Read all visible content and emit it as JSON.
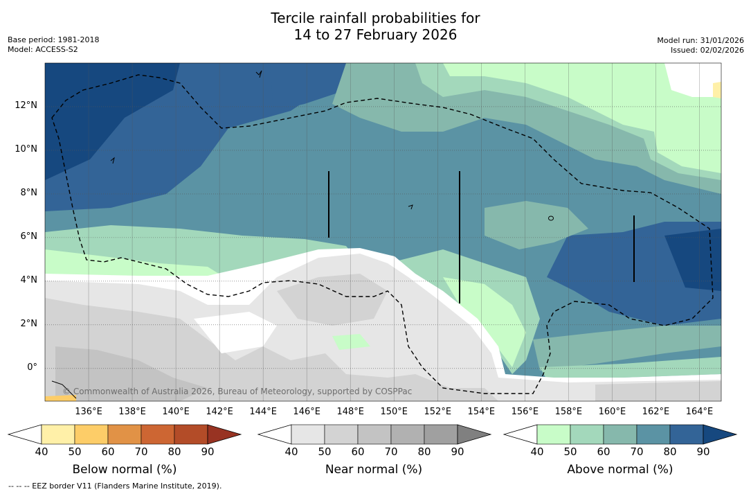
{
  "title": {
    "line1": "Tercile rainfall probabilities for",
    "line2": "14 to 27 February 2026"
  },
  "meta_left": {
    "base_period": "Base period: 1981-2018",
    "model": "Model: ACCESS-S2"
  },
  "meta_right": {
    "model_run": "Model run: 31/01/2026",
    "issued": "Issued: 02/02/2026"
  },
  "map": {
    "lat_labels": [
      "12°N",
      "10°N",
      "8°N",
      "6°N",
      "4°N",
      "2°N",
      "0°"
    ],
    "lon_labels": [
      "136°E",
      "138°E",
      "140°E",
      "142°E",
      "144°E",
      "146°E",
      "148°E",
      "150°E",
      "152°E",
      "154°E",
      "156°E",
      "158°E",
      "160°E",
      "162°E",
      "164°E"
    ],
    "lon_values": [
      136,
      138,
      140,
      142,
      144,
      146,
      148,
      150,
      152,
      154,
      156,
      158,
      160,
      162,
      164
    ],
    "lat_values": [
      12,
      10,
      8,
      6,
      4,
      2,
      0
    ],
    "lon_range": [
      134.0,
      165.0
    ],
    "lat_range": [
      -1.5,
      14.0
    ],
    "copyright": "© Commonwealth of Australia 2026, Bureau of Meteorology, supported by COSPPac"
  },
  "colorbars": [
    {
      "label": "Below normal (%)",
      "ticks": [
        "40",
        "50",
        "60",
        "70",
        "80",
        "90"
      ],
      "colors": [
        "#fff0a8",
        "#fdcd68",
        "#e19246",
        "#cd6633",
        "#b34c28",
        "#983322"
      ]
    },
    {
      "label": "Near normal (%)",
      "ticks": [
        "40",
        "50",
        "60",
        "70",
        "80",
        "90"
      ],
      "colors": [
        "#e6e6e6",
        "#d3d3d3",
        "#c3c3c3",
        "#b1b1b1",
        "#a0a0a0",
        "#808080"
      ]
    },
    {
      "label": "Above normal (%)",
      "ticks": [
        "40",
        "50",
        "60",
        "70",
        "80",
        "90"
      ],
      "colors": [
        "#c8fcc8",
        "#a3d8bb",
        "#86b8ac",
        "#5b93a4",
        "#336497",
        "#16487f"
      ]
    }
  ],
  "footnote": "--  --  -- EEZ border V11 (Flanders Marine Institute, 2019)."
}
